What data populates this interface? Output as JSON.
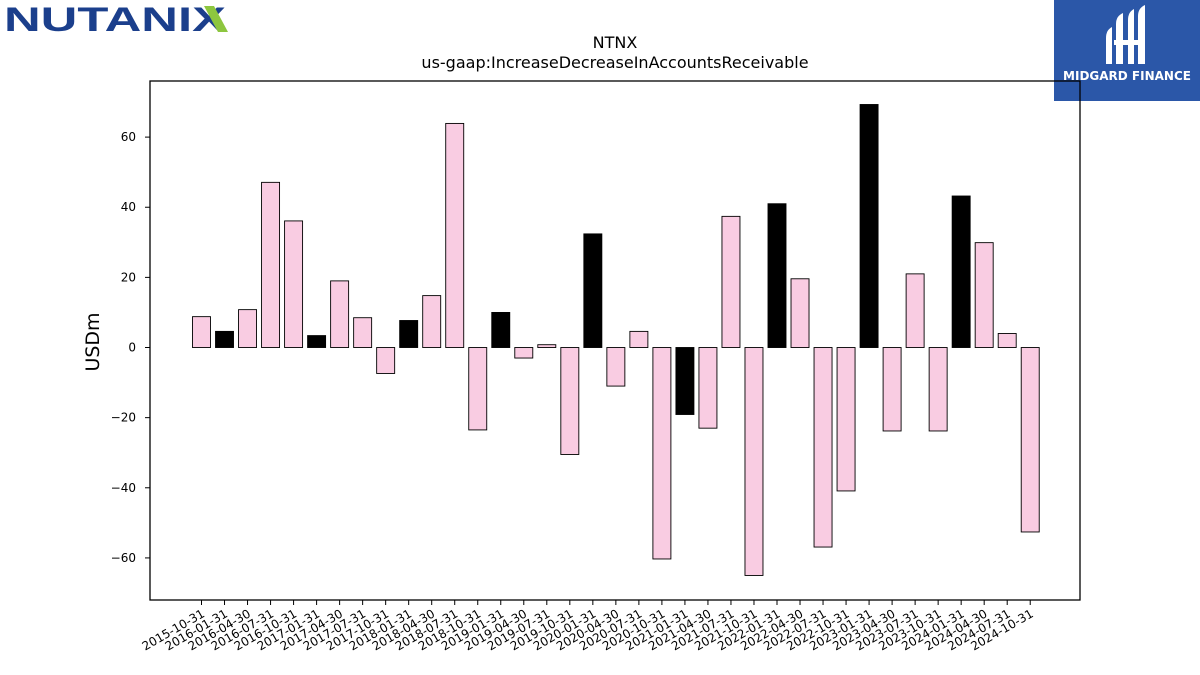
{
  "header": {
    "left_logo_text": "NUTANIX",
    "right_logo_text": "MIDGARD FINANCE"
  },
  "colors": {
    "positive_bar": "#000000",
    "negative_bar": "#f9cce2",
    "logo_blue": "#1b3f8c",
    "logo_green": "#8dc63f",
    "badge_blue": "#2b57a8"
  },
  "chart_data": {
    "type": "bar",
    "title": "NTNX",
    "subtitle": "us-gaap:IncreaseDecreaseInAccountsReceivable",
    "ylabel": "USDm",
    "xlabel": "",
    "ylim": [
      -72,
      76
    ],
    "yticks": [
      -60,
      -40,
      -20,
      0,
      20,
      40,
      60
    ],
    "ytick_labels": [
      "−60",
      "−40",
      "−20",
      "0",
      "20",
      "40",
      "60"
    ],
    "categories": [
      "2015-10-31",
      "2016-01-31",
      "2016-04-30",
      "2016-07-31",
      "2016-10-31",
      "2017-01-31",
      "2017-04-30",
      "2017-07-31",
      "2017-10-31",
      "2018-01-31",
      "2018-04-30",
      "2018-07-31",
      "2018-10-31",
      "2019-01-31",
      "2019-04-30",
      "2019-07-31",
      "2019-10-31",
      "2020-01-31",
      "2020-04-30",
      "2020-07-31",
      "2020-10-31",
      "2021-01-31",
      "2021-04-30",
      "2021-07-31",
      "2021-10-31",
      "2022-01-31",
      "2022-04-30",
      "2022-07-31",
      "2022-10-31",
      "2023-01-31",
      "2023-04-30",
      "2023-07-31",
      "2023-10-31",
      "2024-01-31",
      "2024-04-30",
      "2024-07-31",
      "2024-10-31"
    ],
    "values": [
      8.8,
      4.6,
      10.8,
      47.1,
      36.1,
      3.4,
      19.0,
      8.5,
      -7.4,
      7.7,
      14.8,
      63.9,
      -23.5,
      10.0,
      -3.0,
      0.8,
      -30.5,
      32.4,
      -11.0,
      4.6,
      -60.3,
      -19.1,
      -23.0,
      37.4,
      -65.0,
      41.0,
      19.6,
      -56.9,
      -40.9,
      69.3,
      -23.8,
      21.0,
      -23.8,
      43.2,
      29.9,
      4.0,
      -52.6
    ],
    "highlighted_indices": [
      1,
      5,
      9,
      13,
      17,
      21,
      25,
      29,
      33
    ],
    "grid": false,
    "legend": "none"
  }
}
